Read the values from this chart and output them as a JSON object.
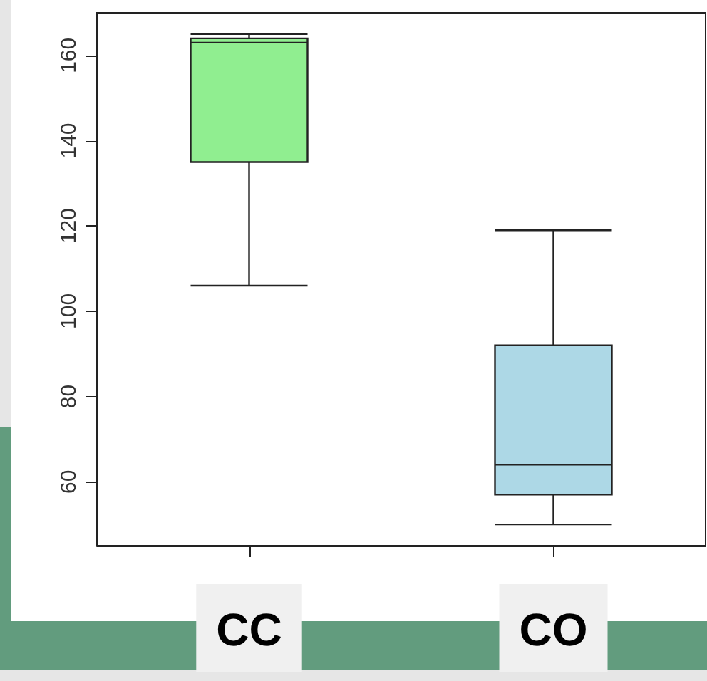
{
  "chart_data": {
    "type": "box",
    "categories": [
      "CC",
      "CO"
    ],
    "boxes": [
      {
        "low": 106,
        "q1": 135,
        "median": 163,
        "q3": 164,
        "high": 165
      },
      {
        "low": 50,
        "q1": 57,
        "median": 64,
        "q3": 92,
        "high": 119
      }
    ],
    "colors": [
      "#90ee90",
      "#add8e6"
    ],
    "ylim": [
      45,
      170
    ],
    "yticks": [
      60,
      80,
      100,
      120,
      140,
      160
    ],
    "grid": false
  }
}
